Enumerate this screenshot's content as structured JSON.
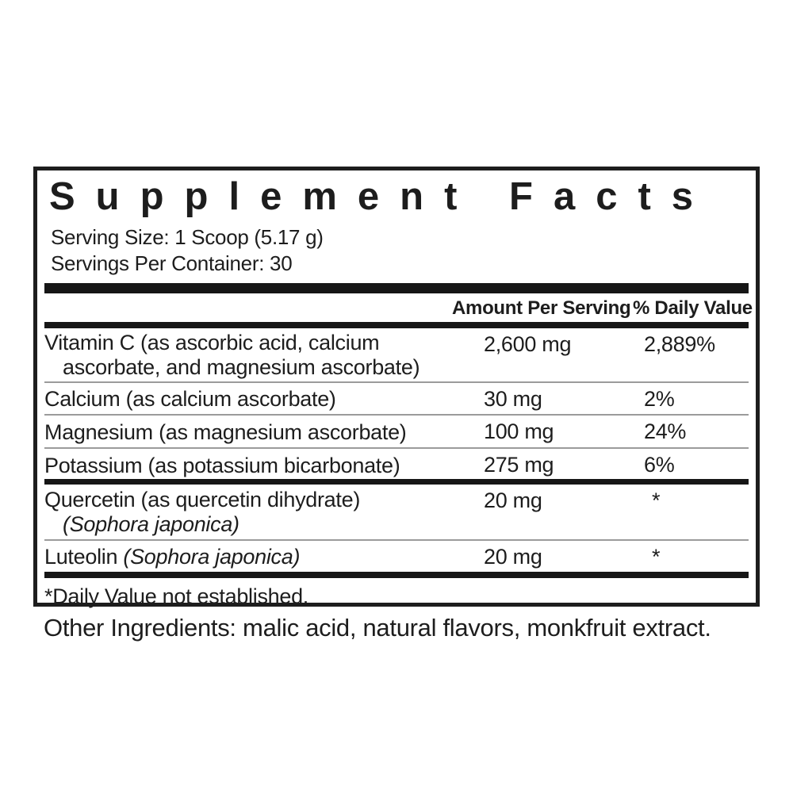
{
  "label": {
    "title": "Supplement Facts",
    "serving": {
      "size": "Serving Size: 1 Scoop (5.17 g)",
      "per_container": "Servings Per Container: 30"
    },
    "table": {
      "headers": {
        "amount": "Amount Per Serving",
        "daily_value": "% Daily Value"
      },
      "rows": [
        {
          "name_line1": "Vitamin C (as ascorbic acid, calcium",
          "name_line2": "ascorbate, and magnesium ascorbate)",
          "amount": "2,600 mg",
          "daily_value": "2,889%"
        },
        {
          "name_line1": "Calcium (as calcium ascorbate)",
          "amount": "30 mg",
          "daily_value": "2%"
        },
        {
          "name_line1": "Magnesium (as magnesium ascorbate)",
          "amount": "100 mg",
          "daily_value": "24%"
        },
        {
          "name_line1": "Potassium (as potassium bicarbonate)",
          "amount": "275 mg",
          "daily_value": "6%"
        },
        {
          "name_line1": "Quercetin (as quercetin dihydrate)",
          "name_line2_italic": "(Sophora japonica)",
          "amount": "20 mg",
          "daily_value": "*"
        },
        {
          "name_line1": "Luteolin ",
          "name_inline_italic": "(Sophora japonica)",
          "amount": "20 mg",
          "daily_value": "*"
        }
      ],
      "footnote": "*Daily Value not established."
    },
    "other_ingredients": "Other Ingredients: malic acid, natural flavors, monkfruit extract.",
    "colors": {
      "ink": "#1d1d1d",
      "rule_thin": "#9b9b9b",
      "rule_thick": "#161616",
      "background": "#ffffff"
    }
  }
}
